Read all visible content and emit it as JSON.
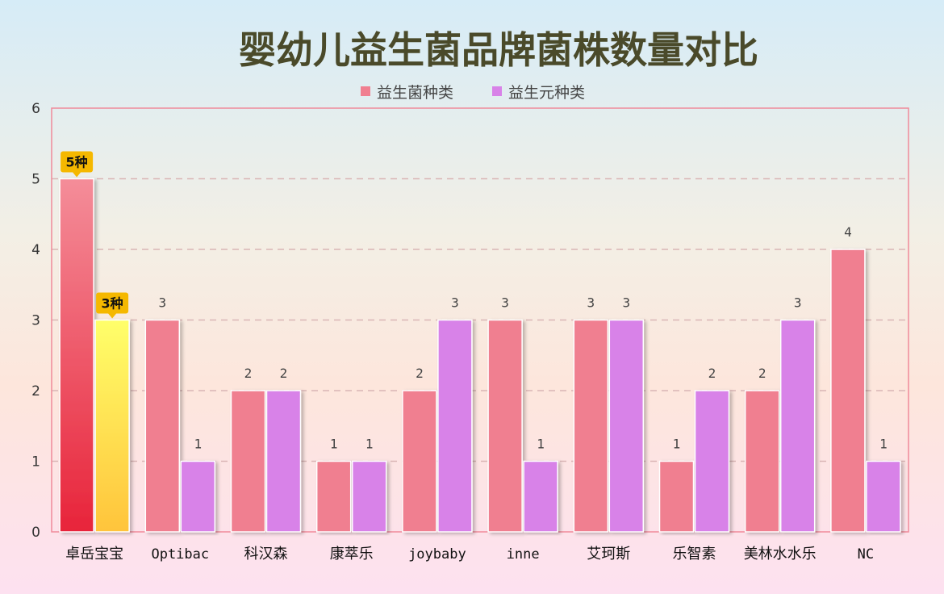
{
  "chart_data": {
    "type": "bar",
    "title": "婴幼儿益生菌品牌菌株数量对比",
    "categories": [
      "卓岳宝宝",
      "Optibac",
      "科汉森",
      "康萃乐",
      "joybaby",
      "inne",
      "艾珂斯",
      "乐智素",
      "美林水水乐",
      "NC"
    ],
    "series": [
      {
        "name": "益生菌种类",
        "values": [
          5,
          3,
          2,
          1,
          2,
          3,
          3,
          1,
          2,
          4
        ],
        "color": "#f07f90"
      },
      {
        "name": "益生元种类",
        "values": [
          3,
          1,
          2,
          1,
          3,
          1,
          3,
          2,
          3,
          1
        ],
        "color": "#d882e8"
      }
    ],
    "ylim": [
      0,
      6
    ],
    "yticks": [
      0,
      1,
      2,
      3,
      4,
      5,
      6
    ],
    "grid": true,
    "legend": "top-center",
    "highlight": {
      "category_index": 0,
      "labels": [
        "5种",
        "3种"
      ],
      "colors": [
        "#e8243a",
        "#ffd43b"
      ],
      "badge_color": "#f5b800"
    },
    "colors": {
      "axis": "#f08a9a",
      "grid": "#d9b5b5"
    }
  }
}
